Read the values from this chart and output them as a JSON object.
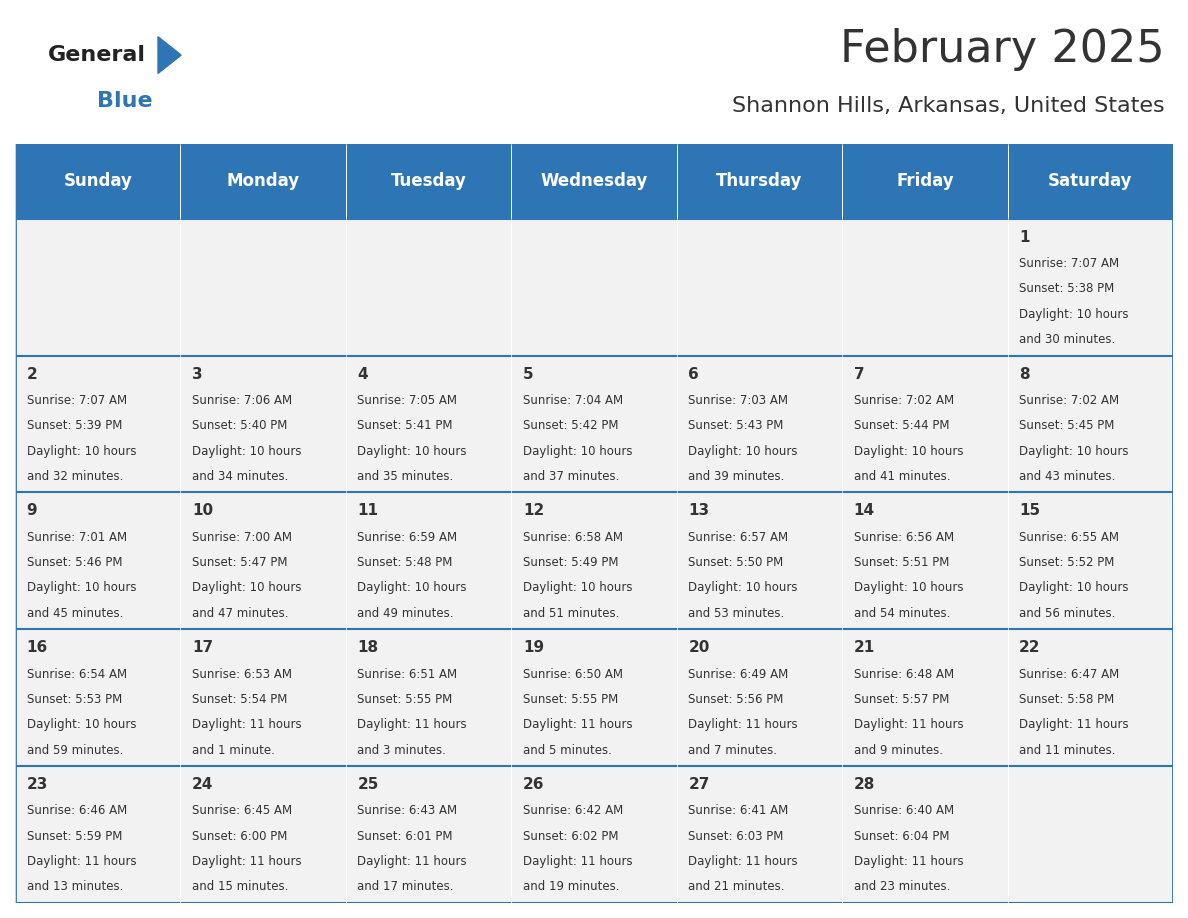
{
  "title": "February 2025",
  "subtitle": "Shannon Hills, Arkansas, United States",
  "days_of_week": [
    "Sunday",
    "Monday",
    "Tuesday",
    "Wednesday",
    "Thursday",
    "Friday",
    "Saturday"
  ],
  "header_bg": "#2e75b6",
  "header_text": "#ffffff",
  "cell_bg_light": "#f2f2f2",
  "cell_bg_white": "#ffffff",
  "border_color": "#2e75b6",
  "text_color": "#333333",
  "day_number_color": "#333333",
  "calendar_data": [
    {
      "day": 1,
      "col": 6,
      "row": 0,
      "sunrise": "7:07 AM",
      "sunset": "5:38 PM",
      "daylight": "10 hours and 30 minutes."
    },
    {
      "day": 2,
      "col": 0,
      "row": 1,
      "sunrise": "7:07 AM",
      "sunset": "5:39 PM",
      "daylight": "10 hours and 32 minutes."
    },
    {
      "day": 3,
      "col": 1,
      "row": 1,
      "sunrise": "7:06 AM",
      "sunset": "5:40 PM",
      "daylight": "10 hours and 34 minutes."
    },
    {
      "day": 4,
      "col": 2,
      "row": 1,
      "sunrise": "7:05 AM",
      "sunset": "5:41 PM",
      "daylight": "10 hours and 35 minutes."
    },
    {
      "day": 5,
      "col": 3,
      "row": 1,
      "sunrise": "7:04 AM",
      "sunset": "5:42 PM",
      "daylight": "10 hours and 37 minutes."
    },
    {
      "day": 6,
      "col": 4,
      "row": 1,
      "sunrise": "7:03 AM",
      "sunset": "5:43 PM",
      "daylight": "10 hours and 39 minutes."
    },
    {
      "day": 7,
      "col": 5,
      "row": 1,
      "sunrise": "7:02 AM",
      "sunset": "5:44 PM",
      "daylight": "10 hours and 41 minutes."
    },
    {
      "day": 8,
      "col": 6,
      "row": 1,
      "sunrise": "7:02 AM",
      "sunset": "5:45 PM",
      "daylight": "10 hours and 43 minutes."
    },
    {
      "day": 9,
      "col": 0,
      "row": 2,
      "sunrise": "7:01 AM",
      "sunset": "5:46 PM",
      "daylight": "10 hours and 45 minutes."
    },
    {
      "day": 10,
      "col": 1,
      "row": 2,
      "sunrise": "7:00 AM",
      "sunset": "5:47 PM",
      "daylight": "10 hours and 47 minutes."
    },
    {
      "day": 11,
      "col": 2,
      "row": 2,
      "sunrise": "6:59 AM",
      "sunset": "5:48 PM",
      "daylight": "10 hours and 49 minutes."
    },
    {
      "day": 12,
      "col": 3,
      "row": 2,
      "sunrise": "6:58 AM",
      "sunset": "5:49 PM",
      "daylight": "10 hours and 51 minutes."
    },
    {
      "day": 13,
      "col": 4,
      "row": 2,
      "sunrise": "6:57 AM",
      "sunset": "5:50 PM",
      "daylight": "10 hours and 53 minutes."
    },
    {
      "day": 14,
      "col": 5,
      "row": 2,
      "sunrise": "6:56 AM",
      "sunset": "5:51 PM",
      "daylight": "10 hours and 54 minutes."
    },
    {
      "day": 15,
      "col": 6,
      "row": 2,
      "sunrise": "6:55 AM",
      "sunset": "5:52 PM",
      "daylight": "10 hours and 56 minutes."
    },
    {
      "day": 16,
      "col": 0,
      "row": 3,
      "sunrise": "6:54 AM",
      "sunset": "5:53 PM",
      "daylight": "10 hours and 59 minutes."
    },
    {
      "day": 17,
      "col": 1,
      "row": 3,
      "sunrise": "6:53 AM",
      "sunset": "5:54 PM",
      "daylight": "11 hours and 1 minute."
    },
    {
      "day": 18,
      "col": 2,
      "row": 3,
      "sunrise": "6:51 AM",
      "sunset": "5:55 PM",
      "daylight": "11 hours and 3 minutes."
    },
    {
      "day": 19,
      "col": 3,
      "row": 3,
      "sunrise": "6:50 AM",
      "sunset": "5:55 PM",
      "daylight": "11 hours and 5 minutes."
    },
    {
      "day": 20,
      "col": 4,
      "row": 3,
      "sunrise": "6:49 AM",
      "sunset": "5:56 PM",
      "daylight": "11 hours and 7 minutes."
    },
    {
      "day": 21,
      "col": 5,
      "row": 3,
      "sunrise": "6:48 AM",
      "sunset": "5:57 PM",
      "daylight": "11 hours and 9 minutes."
    },
    {
      "day": 22,
      "col": 6,
      "row": 3,
      "sunrise": "6:47 AM",
      "sunset": "5:58 PM",
      "daylight": "11 hours and 11 minutes."
    },
    {
      "day": 23,
      "col": 0,
      "row": 4,
      "sunrise": "6:46 AM",
      "sunset": "5:59 PM",
      "daylight": "11 hours and 13 minutes."
    },
    {
      "day": 24,
      "col": 1,
      "row": 4,
      "sunrise": "6:45 AM",
      "sunset": "6:00 PM",
      "daylight": "11 hours and 15 minutes."
    },
    {
      "day": 25,
      "col": 2,
      "row": 4,
      "sunrise": "6:43 AM",
      "sunset": "6:01 PM",
      "daylight": "11 hours and 17 minutes."
    },
    {
      "day": 26,
      "col": 3,
      "row": 4,
      "sunrise": "6:42 AM",
      "sunset": "6:02 PM",
      "daylight": "11 hours and 19 minutes."
    },
    {
      "day": 27,
      "col": 4,
      "row": 4,
      "sunrise": "6:41 AM",
      "sunset": "6:03 PM",
      "daylight": "11 hours and 21 minutes."
    },
    {
      "day": 28,
      "col": 5,
      "row": 4,
      "sunrise": "6:40 AM",
      "sunset": "6:04 PM",
      "daylight": "11 hours and 23 minutes."
    }
  ],
  "num_rows": 5,
  "title_fontsize": 32,
  "subtitle_fontsize": 16,
  "header_fontsize": 12,
  "day_num_fontsize": 11,
  "cell_text_fontsize": 8.5
}
